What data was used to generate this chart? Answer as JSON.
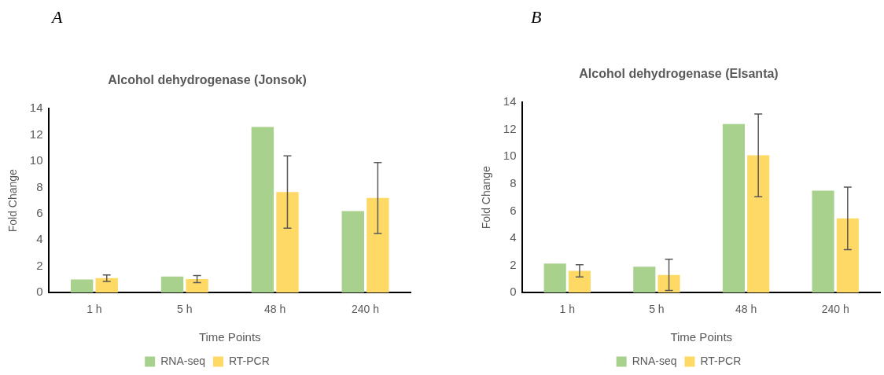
{
  "chart_data": [
    {
      "type": "bar",
      "title": "Alcohol dehydrogenase (Jonsok)",
      "xlabel": "Time Points",
      "ylabel": "Fold Change",
      "annotations": [
        "A"
      ],
      "categories": [
        "1 h",
        "5 h",
        "48 h",
        "240 h"
      ],
      "series": [
        {
          "name": "RNA-seq",
          "color": "#a9d18e",
          "values": [
            1.0,
            1.23,
            12.6,
            6.2
          ]
        },
        {
          "name": "RT-PCR",
          "color": "#ffd966",
          "values": [
            1.1,
            1.03,
            7.65,
            7.2
          ],
          "errors": [
            0.25,
            0.27,
            2.75,
            2.7
          ]
        }
      ],
      "ylim": [
        0,
        14
      ],
      "yticks": [
        0,
        2,
        4,
        6,
        8,
        10,
        12,
        14
      ],
      "grid": false,
      "legend": "bottom"
    },
    {
      "type": "bar",
      "title": "Alcohol dehydrogenase (Elsanta)",
      "xlabel": "Time Points",
      "ylabel": "Fold Change",
      "annotations": [
        "B"
      ],
      "categories": [
        "1 h",
        "5 h",
        "48 h",
        "240 h"
      ],
      "series": [
        {
          "name": "RNA-seq",
          "color": "#a9d18e",
          "values": [
            2.14,
            1.9,
            12.4,
            7.5
          ]
        },
        {
          "name": "RT-PCR",
          "color": "#ffd966",
          "values": [
            1.6,
            1.3,
            10.1,
            5.47
          ],
          "errors": [
            0.45,
            1.15,
            3.05,
            2.3
          ]
        }
      ],
      "ylim": [
        0,
        14
      ],
      "yticks": [
        0,
        2,
        4,
        6,
        8,
        10,
        12,
        14
      ],
      "grid": false,
      "legend": "bottom"
    }
  ]
}
